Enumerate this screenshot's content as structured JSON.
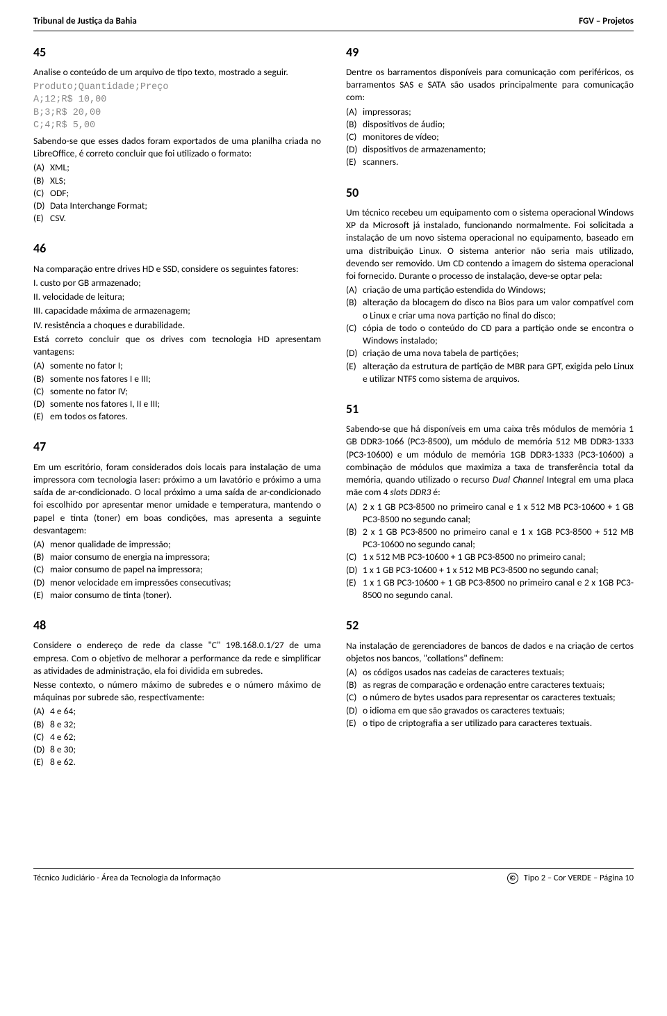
{
  "header": {
    "left": "Tribunal de Justiça da Bahia",
    "right": "FGV – Projetos"
  },
  "footer": {
    "left": "Técnico Judiciário - Área da Tecnologia da Informação",
    "right": "Tipo 2 – Cor VERDE – Página 10",
    "copy": "©"
  },
  "q45": {
    "num": "45",
    "intro": "Analise o conteúdo de um arquivo de tipo texto, mostrado a seguir.",
    "code": "Produto;Quantidade;Preço\nA;12;R$ 10,00\nB;3;R$ 20,00\nC;4;R$ 5,00",
    "after": "Sabendo-se que esses dados foram exportados de uma planilha criada no LibreOffice, é correto concluir que foi utilizado o formato:",
    "opts": [
      {
        "l": "(A)",
        "t": "XML;"
      },
      {
        "l": "(B)",
        "t": "XLS;"
      },
      {
        "l": "(C)",
        "t": "ODF;"
      },
      {
        "l": "(D)",
        "t": "Data Interchange Format;"
      },
      {
        "l": "(E)",
        "t": "CSV."
      }
    ]
  },
  "q46": {
    "num": "46",
    "intro": "Na comparação entre drives HD e SSD, considere os seguintes fatores:",
    "factors": [
      "I. custo por GB armazenado;",
      "II. velocidade de leitura;",
      "III. capacidade máxima de armazenagem;",
      "IV. resistência a choques e durabilidade."
    ],
    "after": "Está correto concluir que os drives com tecnologia HD apresentam vantagens:",
    "opts": [
      {
        "l": "(A)",
        "t": "somente no fator I;"
      },
      {
        "l": "(B)",
        "t": "somente nos fatores I e III;"
      },
      {
        "l": "(C)",
        "t": "somente no fator IV;"
      },
      {
        "l": "(D)",
        "t": "somente nos fatores I, II e III;"
      },
      {
        "l": "(E)",
        "t": "em todos os fatores."
      }
    ]
  },
  "q47": {
    "num": "47",
    "intro": "Em um escritório, foram considerados dois locais para instalação de uma impressora com tecnologia laser: próximo a um lavatório e próximo a uma saída de ar-condicionado. O local próximo a uma saída de ar-condicionado foi escolhido por apresentar menor umidade e temperatura, mantendo o papel e tinta (toner) em boas condições, mas apresenta a seguinte desvantagem:",
    "opts": [
      {
        "l": "(A)",
        "t": "menor qualidade de impressão;"
      },
      {
        "l": "(B)",
        "t": "maior consumo de energia na impressora;"
      },
      {
        "l": "(C)",
        "t": "maior consumo de papel na impressora;"
      },
      {
        "l": "(D)",
        "t": "menor velocidade em impressões consecutivas;"
      },
      {
        "l": "(E)",
        "t": "maior consumo de tinta (toner)."
      }
    ]
  },
  "q48": {
    "num": "48",
    "p1": "Considere o endereço de rede da classe \"C\" 198.168.0.1/27 de uma empresa. Com o objetivo de melhorar a performance da rede e simplificar as atividades de administração, ela foi dividida em subredes.",
    "p2": "Nesse contexto, o número máximo de subredes e o número máximo de máquinas por subrede são, respectivamente:",
    "opts": [
      {
        "l": "(A)",
        "t": "4 e 64;"
      },
      {
        "l": "(B)",
        "t": "8 e 32;"
      },
      {
        "l": "(C)",
        "t": "4 e 62;"
      },
      {
        "l": "(D)",
        "t": "8 e 30;"
      },
      {
        "l": "(E)",
        "t": "8 e 62."
      }
    ]
  },
  "q49": {
    "num": "49",
    "intro": "Dentre os barramentos disponíveis para comunicação com periféricos, os barramentos SAS e SATA são usados principalmente para comunicação com:",
    "opts": [
      {
        "l": "(A)",
        "t": "impressoras;"
      },
      {
        "l": "(B)",
        "t": "dispositivos de áudio;"
      },
      {
        "l": "(C)",
        "t": "monitores de vídeo;"
      },
      {
        "l": "(D)",
        "t": "dispositivos de armazenamento;"
      },
      {
        "l": "(E)",
        "t": "scanners."
      }
    ]
  },
  "q50": {
    "num": "50",
    "intro": "Um técnico recebeu um equipamento com o sistema operacional Windows XP da Microsoft já instalado, funcionando normalmente. Foi solicitada a instalação de um novo sistema operacional no equipamento, baseado em uma distribuição Linux. O sistema anterior não seria mais utilizado, devendo ser removido. Um CD contendo a imagem do sistema operacional foi fornecido. Durante o processo de instalação, deve-se optar pela:",
    "opts": [
      {
        "l": "(A)",
        "t": "criação de uma partição estendida do Windows;"
      },
      {
        "l": "(B)",
        "t": "alteração da blocagem do disco na Bios para um valor compatível com o Linux e criar uma nova partição no final do disco;"
      },
      {
        "l": "(C)",
        "t": "cópia de todo o conteúdo do CD para a partição onde se encontra o Windows instalado;"
      },
      {
        "l": "(D)",
        "t": "criação de uma nova tabela de partições;"
      },
      {
        "l": "(E)",
        "t": "alteração da estrutura de partição de MBR para GPT, exigida pelo Linux e utilizar NTFS como sistema de arquivos."
      }
    ]
  },
  "q51": {
    "num": "51",
    "intro_html": "Sabendo-se que há disponíveis em uma caixa três módulos de memória 1 GB DDR3-1066 (PC3-8500), um módulo de memória 512 MB DDR3-1333 (PC3-10600) e um módulo de memória 1GB DDR3-1333 (PC3-10600) a combinação de módulos que maximiza a taxa de transferência total da memória, quando utilizado o recurso <span class=\"italic\">Dual Channel</span> Integral em uma placa mãe com 4 <span class=\"italic\">slots DDR3</span> é:",
    "opts": [
      {
        "l": "(A)",
        "t": "2 x 1 GB PC3-8500 no primeiro canal e 1 x 512 MB PC3-10600 + 1 GB PC3-8500 no segundo canal;"
      },
      {
        "l": "(B)",
        "t": "2 x 1 GB PC3-8500 no primeiro canal e 1 x 1GB PC3-8500 + 512 MB PC3-10600 no segundo canal;"
      },
      {
        "l": "(C)",
        "t": "1 x 512 MB PC3-10600 + 1 GB PC3-8500 no primeiro canal;"
      },
      {
        "l": "(D)",
        "t": "1 x 1 GB PC3-10600 + 1 x 512 MB PC3-8500 no segundo canal;"
      },
      {
        "l": "(E)",
        "t": "1 x 1 GB PC3-10600 + 1 GB PC3-8500 no primeiro canal e 2 x 1GB PC3-8500 no segundo canal."
      }
    ]
  },
  "q52": {
    "num": "52",
    "intro": "Na instalação de gerenciadores de bancos de dados e na criação de certos objetos nos bancos, \"collations\" definem:",
    "opts": [
      {
        "l": "(A)",
        "t": "os códigos usados nas cadeias de caracteres textuais;"
      },
      {
        "l": "(B)",
        "t": "as regras de comparação e ordenação entre caracteres textuais;"
      },
      {
        "l": "(C)",
        "t": "o número de bytes usados para representar os caracteres textuais;"
      },
      {
        "l": "(D)",
        "t": "o idioma em que são gravados os caracteres textuais;"
      },
      {
        "l": "(E)",
        "t": "o tipo de criptografia a ser utilizado para caracteres textuais."
      }
    ]
  }
}
